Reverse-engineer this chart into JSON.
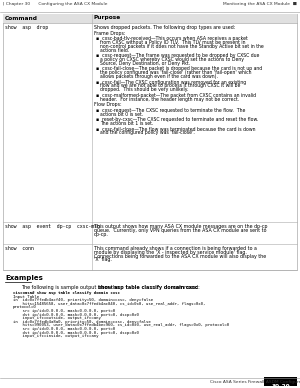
{
  "header_left": "| Chapter 30      Configuring the ASA CX Module",
  "header_right": "Monitoring the ASA CX Module  ■",
  "footer_right": "Cisco ASA Series Firewall ASDM Configuration Guide",
  "page_num": "30-29",
  "col1_header": "Command",
  "col2_header": "Purpose",
  "row1_cmd": "show  asp  drop",
  "row1_purpose": [
    {
      "text": "Shows dropped packets. The following drop types are used:",
      "bold": false,
      "indent": 0
    },
    {
      "text": "",
      "bold": false,
      "indent": 0
    },
    {
      "text": "Frame Drops:",
      "bold": false,
      "indent": 0
    },
    {
      "text": "",
      "bold": false,
      "indent": 0
    },
    {
      "text": "▪  cxsc-bad-tlv-received—This occurs when ASA receives a packet",
      "bold": false,
      "indent": 1
    },
    {
      "text": "from CXSC without a Policy ID TLV.  This TLV must be present in",
      "bold": false,
      "indent": 2
    },
    {
      "text": "non-control packets if it does not have the Standby Active bit set in the",
      "bold": false,
      "indent": 2
    },
    {
      "text": "actions field.",
      "bold": false,
      "indent": 2
    },
    {
      "text": "",
      "bold": false,
      "indent": 0
    },
    {
      "text": "▪  cxsc-request—The frame was requested to be dropped by CXSC due",
      "bold": false,
      "indent": 1
    },
    {
      "text": "a policy on CXSC whereby CXSC would set the actions to Deny",
      "bold": false,
      "indent": 2
    },
    {
      "text": "Source, Deny Destination, or Deny Pkt.",
      "bold": false,
      "indent": 2
    },
    {
      "text": "",
      "bold": false,
      "indent": 0
    },
    {
      "text": "▪  cxsc-fail-close—The packet is dropped because the card is not up and",
      "bold": false,
      "indent": 1
    },
    {
      "text": "the policy configured was 'fail-close' (rather than 'fail-open' which",
      "bold": false,
      "indent": 2
    },
    {
      "text": "allows packets through even if the card was down).",
      "bold": false,
      "indent": 2
    },
    {
      "text": "",
      "bold": false,
      "indent": 0
    },
    {
      "text": "▪  cxsc-fail—The CXSC configuration was removed for an existing",
      "bold": false,
      "indent": 1
    },
    {
      "text": "flow and we are not able to process it through CXSC it will be",
      "bold": false,
      "indent": 2
    },
    {
      "text": "dropped.  This should be very unlikely.",
      "bold": false,
      "indent": 2
    },
    {
      "text": "",
      "bold": false,
      "indent": 0
    },
    {
      "text": "▪  cxsc-malformed-packet—The packet from CXSC contains an invalid",
      "bold": false,
      "indent": 1
    },
    {
      "text": "header.  For instance, the header length may not be correct.",
      "bold": false,
      "indent": 2
    },
    {
      "text": "",
      "bold": false,
      "indent": 0
    },
    {
      "text": "Flow Drops:",
      "bold": false,
      "indent": 0
    },
    {
      "text": "",
      "bold": false,
      "indent": 0
    },
    {
      "text": "▪  cxsc-request—The CXSC requested to terminate the flow.  The",
      "bold": false,
      "indent": 1
    },
    {
      "text": "actions bit 0 is set.",
      "bold": false,
      "indent": 2
    },
    {
      "text": "",
      "bold": false,
      "indent": 0
    },
    {
      "text": "▪  reset-by-cxsc—The CXSC requested to terminate and reset the flow.",
      "bold": false,
      "indent": 1
    },
    {
      "text": "The actions bit 1 is set.",
      "bold": false,
      "indent": 2
    },
    {
      "text": "",
      "bold": false,
      "indent": 0
    },
    {
      "text": "▪  cxsc-fail-close—The flow was terminated because the card is down",
      "bold": false,
      "indent": 1
    },
    {
      "text": "and the configured policy was 'fail-close'.",
      "bold": false,
      "indent": 2
    }
  ],
  "row2_cmd": "show  asp  event  dp-cp  cxsc-msg",
  "row2_purpose": [
    "This output shows how many ASA CX module messages are on the dp-cp",
    "queue.  Currently, only VPN queries from the ASA CX module are sent to",
    "dp-cp."
  ],
  "row3_cmd": "show  conn",
  "row3_purpose": [
    "This command already shows if a connection is being forwarded to a",
    "module by displaying the 'X - inspected by service module' flag.",
    "Connections being forwarded to the ASA CX module will also display the",
    "'X' flag."
  ],
  "examples_title": "Examples",
  "intro_pre": "The following is sample output from the ",
  "intro_bold": "show asp table classify domain cxsc",
  "intro_post": " command:",
  "code_lines": [
    {
      "text": "ciscoasa# show asp table classify domain cxsc",
      "bold": true
    },
    {
      "text": "Input Table",
      "bold": false
    },
    {
      "text": "in  id=0x7ffedb4acf40, priority=50, domain=cxsc, deny=false",
      "bold": false
    },
    {
      "text": "    hits=15485658, user_data=0x7ffedb4ac840, cs_id=0x0, use_real_addr, flags=0x0,",
      "bold": false
    },
    {
      "text": "protocol=0",
      "bold": false
    },
    {
      "text": "    src ip/id=0.0.0.0, mask=0.0.0.0, port=0",
      "bold": false
    },
    {
      "text": "    dst ip/id=0.0.0.0, mask=0.0.0.0, port=0, dscp=0x0",
      "bold": false
    },
    {
      "text": "    input_ifc=outside, output_ifc=any",
      "bold": false
    },
    {
      "text": "in  id=0x7ffedb4a8a0, priority=50, domain=cxsc, deny=false",
      "bold": false
    },
    {
      "text": "    hits=990053, user_data=0x7ffedb4bec960, cs_id=0x0, use_real_addr, flags=0x0, protocol=0",
      "bold": false
    },
    {
      "text": "    src ip/id=0.0.0.0, mask=0.0.0.0, port=0",
      "bold": false
    },
    {
      "text": "    dst ip/id=0.0.0.0, mask=0.0.0.0, port=0, dscp=0x0",
      "bold": false
    },
    {
      "text": "    input_ifc=inside, output_ifc=any",
      "bold": false
    }
  ],
  "bg_color": "#ffffff"
}
